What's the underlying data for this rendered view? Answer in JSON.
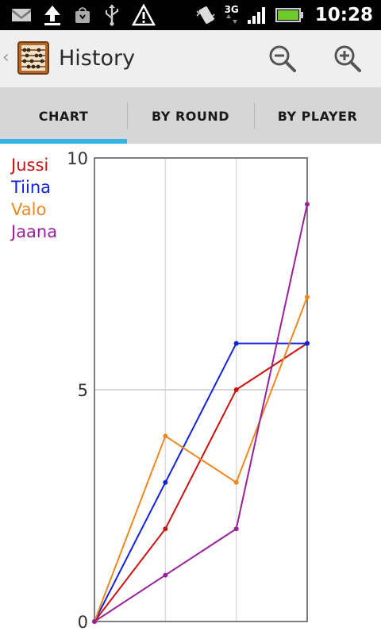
{
  "status_bar": {
    "time": "10:28",
    "network_label": "3G",
    "icons": [
      "gmail-icon",
      "upload-icon",
      "market-icon",
      "usb-icon",
      "warning-icon",
      "vibrate-icon",
      "signal-icon",
      "battery-icon"
    ]
  },
  "action_bar": {
    "title": "History",
    "icons": [
      "up-caret-icon",
      "abacus-logo-icon",
      "zoom-out-icon",
      "zoom-in-icon"
    ]
  },
  "tabs": [
    {
      "label": "CHART",
      "selected": true
    },
    {
      "label": "BY ROUND",
      "selected": false
    },
    {
      "label": "BY PLAYER",
      "selected": false
    }
  ],
  "colors": {
    "accent": "#33b5e5",
    "Jussi": "#cc1111",
    "Tiina": "#1122dd",
    "Valo": "#ee8822",
    "Jaana": "#992299"
  },
  "chart_data": {
    "type": "line",
    "title": "",
    "xlabel": "",
    "ylabel": "",
    "x": [
      0,
      1,
      2,
      3
    ],
    "ylim": [
      0,
      10
    ],
    "y_ticks": [
      "0",
      "5",
      "10"
    ],
    "grid": true,
    "legend_position": "left",
    "series": [
      {
        "name": "Jussi",
        "color": "#cc1111",
        "values": [
          0,
          2,
          5,
          6
        ]
      },
      {
        "name": "Tiina",
        "color": "#1122dd",
        "values": [
          0,
          3,
          6,
          6
        ]
      },
      {
        "name": "Valo",
        "color": "#ee8822",
        "values": [
          0,
          4,
          3,
          7
        ]
      },
      {
        "name": "Jaana",
        "color": "#992299",
        "values": [
          0,
          1,
          2,
          9
        ]
      }
    ]
  }
}
